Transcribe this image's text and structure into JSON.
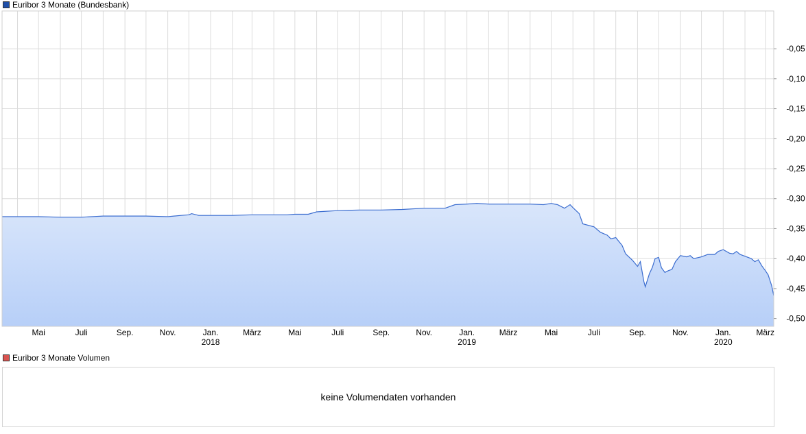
{
  "legend_main": {
    "label": "Euribor 3 Monate (Bundesbank)",
    "color": "#1f4fa8"
  },
  "legend_volume": {
    "label": "Euribor 3 Monate Volumen",
    "color": "#d9534f"
  },
  "volume_panel": {
    "message": "keine Volumendaten vorhanden"
  },
  "colors": {
    "line": "#3a6ccf",
    "fill_top": "#d9e6fb",
    "fill_bottom": "#b7cff8",
    "grid": "#dcdcdc"
  },
  "chart_data": {
    "type": "area",
    "title": "Euribor 3 Monate (Bundesbank)",
    "xlabel": "",
    "ylabel": "",
    "grid": true,
    "ylim": [
      -0.513,
      0.013
    ],
    "xlim": [
      "2017-03-10",
      "2020-03-13"
    ],
    "y_ticks": [
      {
        "value": -0.05,
        "label": "-0,05"
      },
      {
        "value": -0.1,
        "label": "-0,10"
      },
      {
        "value": -0.15,
        "label": "-0,15"
      },
      {
        "value": -0.2,
        "label": "-0,20"
      },
      {
        "value": -0.25,
        "label": "-0,25"
      },
      {
        "value": -0.3,
        "label": "-0,30"
      },
      {
        "value": -0.35,
        "label": "-0,35"
      },
      {
        "value": -0.4,
        "label": "-0,40"
      },
      {
        "value": -0.45,
        "label": "-0,45"
      },
      {
        "value": -0.5,
        "label": "-0,50"
      }
    ],
    "x_ticks": [
      {
        "date": "2017-05-01",
        "label": "Mai",
        "year": ""
      },
      {
        "date": "2017-07-01",
        "label": "Juli",
        "year": ""
      },
      {
        "date": "2017-09-01",
        "label": "Sep.",
        "year": ""
      },
      {
        "date": "2017-11-01",
        "label": "Nov.",
        "year": ""
      },
      {
        "date": "2018-01-01",
        "label": "Jan.",
        "year": "2018"
      },
      {
        "date": "2018-03-01",
        "label": "März",
        "year": ""
      },
      {
        "date": "2018-05-01",
        "label": "Mai",
        "year": ""
      },
      {
        "date": "2018-07-01",
        "label": "Juli",
        "year": ""
      },
      {
        "date": "2018-09-01",
        "label": "Sep.",
        "year": ""
      },
      {
        "date": "2018-11-01",
        "label": "Nov.",
        "year": ""
      },
      {
        "date": "2019-01-01",
        "label": "Jan.",
        "year": "2019"
      },
      {
        "date": "2019-03-01",
        "label": "März",
        "year": ""
      },
      {
        "date": "2019-05-01",
        "label": "Mai",
        "year": ""
      },
      {
        "date": "2019-07-01",
        "label": "Juli",
        "year": ""
      },
      {
        "date": "2019-09-01",
        "label": "Sep.",
        "year": ""
      },
      {
        "date": "2019-11-01",
        "label": "Nov.",
        "year": ""
      },
      {
        "date": "2020-01-01",
        "label": "Jan.",
        "year": "2020"
      },
      {
        "date": "2020-03-01",
        "label": "März",
        "year": ""
      }
    ],
    "series": [
      {
        "points": [
          [
            "2017-03-10",
            -0.33
          ],
          [
            "2017-04-01",
            -0.33
          ],
          [
            "2017-05-01",
            -0.33
          ],
          [
            "2017-06-01",
            -0.331
          ],
          [
            "2017-07-01",
            -0.331
          ],
          [
            "2017-08-01",
            -0.329
          ],
          [
            "2017-09-01",
            -0.329
          ],
          [
            "2017-10-01",
            -0.329
          ],
          [
            "2017-11-01",
            -0.33
          ],
          [
            "2017-11-20",
            -0.328
          ],
          [
            "2017-12-01",
            -0.327
          ],
          [
            "2017-12-05",
            -0.325
          ],
          [
            "2017-12-15",
            -0.328
          ],
          [
            "2018-01-01",
            -0.328
          ],
          [
            "2018-02-01",
            -0.328
          ],
          [
            "2018-03-01",
            -0.327
          ],
          [
            "2018-04-01",
            -0.327
          ],
          [
            "2018-04-20",
            -0.327
          ],
          [
            "2018-05-01",
            -0.326
          ],
          [
            "2018-05-20",
            -0.326
          ],
          [
            "2018-06-01",
            -0.322
          ],
          [
            "2018-06-15",
            -0.321
          ],
          [
            "2018-07-01",
            -0.32
          ],
          [
            "2018-08-01",
            -0.319
          ],
          [
            "2018-09-01",
            -0.319
          ],
          [
            "2018-10-01",
            -0.318
          ],
          [
            "2018-11-01",
            -0.316
          ],
          [
            "2018-12-01",
            -0.316
          ],
          [
            "2018-12-15",
            -0.31
          ],
          [
            "2019-01-01",
            -0.309
          ],
          [
            "2019-01-15",
            -0.308
          ],
          [
            "2019-02-01",
            -0.309
          ],
          [
            "2019-03-01",
            -0.309
          ],
          [
            "2019-04-01",
            -0.309
          ],
          [
            "2019-04-20",
            -0.31
          ],
          [
            "2019-05-01",
            -0.308
          ],
          [
            "2019-05-10",
            -0.31
          ],
          [
            "2019-05-20",
            -0.316
          ],
          [
            "2019-05-28",
            -0.31
          ],
          [
            "2019-06-01",
            -0.315
          ],
          [
            "2019-06-10",
            -0.325
          ],
          [
            "2019-06-15",
            -0.342
          ],
          [
            "2019-07-01",
            -0.347
          ],
          [
            "2019-07-10",
            -0.356
          ],
          [
            "2019-07-20",
            -0.361
          ],
          [
            "2019-07-25",
            -0.367
          ],
          [
            "2019-08-01",
            -0.365
          ],
          [
            "2019-08-10",
            -0.378
          ],
          [
            "2019-08-15",
            -0.392
          ],
          [
            "2019-08-25",
            -0.403
          ],
          [
            "2019-09-01",
            -0.413
          ],
          [
            "2019-09-05",
            -0.405
          ],
          [
            "2019-09-10",
            -0.438
          ],
          [
            "2019-09-12",
            -0.447
          ],
          [
            "2019-09-18",
            -0.425
          ],
          [
            "2019-09-22",
            -0.415
          ],
          [
            "2019-09-26",
            -0.4
          ],
          [
            "2019-10-01",
            -0.398
          ],
          [
            "2019-10-05",
            -0.415
          ],
          [
            "2019-10-10",
            -0.423
          ],
          [
            "2019-10-15",
            -0.42
          ],
          [
            "2019-10-20",
            -0.418
          ],
          [
            "2019-10-25",
            -0.405
          ],
          [
            "2019-11-01",
            -0.395
          ],
          [
            "2019-11-10",
            -0.397
          ],
          [
            "2019-11-15",
            -0.395
          ],
          [
            "2019-11-20",
            -0.4
          ],
          [
            "2019-12-01",
            -0.397
          ],
          [
            "2019-12-10",
            -0.393
          ],
          [
            "2019-12-20",
            -0.393
          ],
          [
            "2019-12-25",
            -0.388
          ],
          [
            "2020-01-01",
            -0.385
          ],
          [
            "2020-01-10",
            -0.391
          ],
          [
            "2020-01-15",
            -0.392
          ],
          [
            "2020-01-20",
            -0.388
          ],
          [
            "2020-01-25",
            -0.393
          ],
          [
            "2020-02-01",
            -0.396
          ],
          [
            "2020-02-10",
            -0.4
          ],
          [
            "2020-02-15",
            -0.405
          ],
          [
            "2020-02-20",
            -0.402
          ],
          [
            "2020-02-25",
            -0.412
          ],
          [
            "2020-03-01",
            -0.42
          ],
          [
            "2020-03-05",
            -0.427
          ],
          [
            "2020-03-10",
            -0.445
          ],
          [
            "2020-03-13",
            -0.462
          ]
        ]
      }
    ]
  }
}
